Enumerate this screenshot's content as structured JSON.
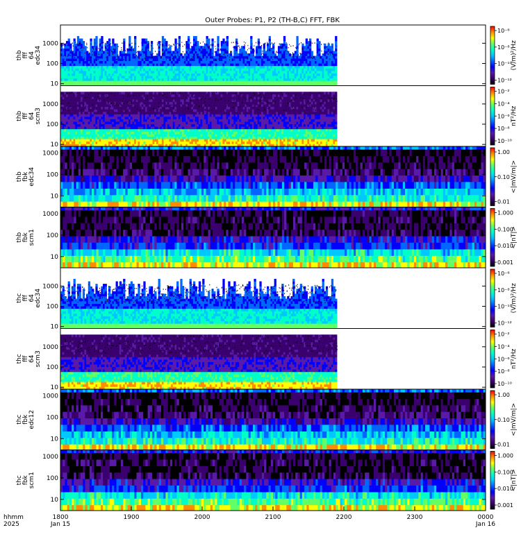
{
  "chart_data": {
    "type": "heatmap",
    "title": "Outer Probes: P1, P2 (TH-B,C) FFT, FBK",
    "x_axis": {
      "label_lines": [
        "hhmm",
        "2025"
      ],
      "ticks": [
        {
          "value": "1800",
          "sub": "Jan 15"
        },
        {
          "value": "1900",
          "sub": ""
        },
        {
          "value": "2000",
          "sub": ""
        },
        {
          "value": "2100",
          "sub": ""
        },
        {
          "value": "2200",
          "sub": ""
        },
        {
          "value": "2300",
          "sub": ""
        },
        {
          "value": "0000",
          "sub": "Jan 16"
        }
      ],
      "range_hours": [
        18.0,
        24.0
      ],
      "fft_data_end_hhmm": "2154"
    },
    "panels": [
      {
        "id": "thb-fff-64-edc34",
        "ylabel": [
          "thb",
          "fff",
          "64",
          "edc34"
        ],
        "instrument": "fft",
        "yticks": [
          "1000",
          "100",
          "10"
        ],
        "ylog_range": [
          8,
          8000
        ],
        "colorbar_label": "(V/m)²/Hz",
        "colorbar_ticks": [
          "10⁻⁶",
          "10⁻⁸",
          "10⁻¹⁰",
          "10⁻¹²"
        ],
        "data_extent": "partial"
      },
      {
        "id": "thb-fff-64-scm3",
        "ylabel": [
          "thb",
          "fff",
          "64",
          "scm3"
        ],
        "instrument": "fft",
        "yticks": [
          "1000",
          "100",
          "10"
        ],
        "ylog_range": [
          8,
          8000
        ],
        "colorbar_label": "nT²/Hz",
        "colorbar_ticks": [
          "10⁻²",
          "10⁻⁴",
          "10⁻⁶",
          "10⁻⁸",
          "10⁻¹⁰"
        ],
        "data_extent": "partial"
      },
      {
        "id": "thb-fbk-edc34",
        "ylabel": [
          "thb",
          "fbk",
          "edc34"
        ],
        "instrument": "fbk",
        "yticks": [
          "1000",
          "100",
          "10"
        ],
        "ylog_range": [
          3,
          2000
        ],
        "colorbar_label": "<|mV/m|>",
        "colorbar_ticks": [
          "1.00",
          "0.10",
          "0.01"
        ],
        "data_extent": "full"
      },
      {
        "id": "thb-fbk-scm1",
        "ylabel": [
          "thb",
          "fbk",
          "scm1"
        ],
        "instrument": "fbk",
        "yticks": [
          "1000",
          "100",
          "10"
        ],
        "ylog_range": [
          3,
          2000
        ],
        "colorbar_label": "<|nT|>",
        "colorbar_ticks": [
          "1.000",
          "0.100",
          "0.010",
          "0.001"
        ],
        "data_extent": "full"
      },
      {
        "id": "thc-fff-64-edc34",
        "ylabel": [
          "thc",
          "fff",
          "64",
          "edc34"
        ],
        "instrument": "fft",
        "yticks": [
          "1000",
          "100",
          "10"
        ],
        "ylog_range": [
          8,
          8000
        ],
        "colorbar_label": "(V/m)²/Hz",
        "colorbar_ticks": [
          "10⁻⁶",
          "10⁻⁸",
          "10⁻¹⁰",
          "10⁻¹²"
        ],
        "data_extent": "partial"
      },
      {
        "id": "thc-fff-64-scm3",
        "ylabel": [
          "thc",
          "fff",
          "64",
          "scm3"
        ],
        "instrument": "fft",
        "yticks": [
          "1000",
          "100",
          "10"
        ],
        "ylog_range": [
          8,
          8000
        ],
        "colorbar_label": "nT²/Hz",
        "colorbar_ticks": [
          "10⁻²",
          "10⁻⁴",
          "10⁻⁶",
          "10⁻⁸",
          "10⁻¹⁰"
        ],
        "data_extent": "partial"
      },
      {
        "id": "thc-fbk-edc12",
        "ylabel": [
          "thc",
          "fbk",
          "edc12"
        ],
        "instrument": "fbk",
        "yticks": [
          "1000",
          "100",
          "10"
        ],
        "ylog_range": [
          3,
          2000
        ],
        "colorbar_label": "<|mV/m|>",
        "colorbar_ticks": [
          "1.00",
          "0.10",
          "0.01"
        ],
        "data_extent": "full"
      },
      {
        "id": "thc-fbk-scm1",
        "ylabel": [
          "thc",
          "fbk",
          "scm1"
        ],
        "instrument": "fbk",
        "yticks": [
          "1000",
          "100",
          "10"
        ],
        "ylog_range": [
          3,
          2000
        ],
        "colorbar_label": "<|nT|>",
        "colorbar_ticks": [
          "1.000",
          "0.100",
          "0.010",
          "0.001"
        ],
        "data_extent": "full"
      }
    ],
    "colormap": [
      "#000000",
      "#3a006e",
      "#5a1aa8",
      "#0000ff",
      "#0066ff",
      "#00c8ff",
      "#00ffc8",
      "#64ff64",
      "#ffff00",
      "#ff8c00",
      "#ff0000"
    ]
  }
}
